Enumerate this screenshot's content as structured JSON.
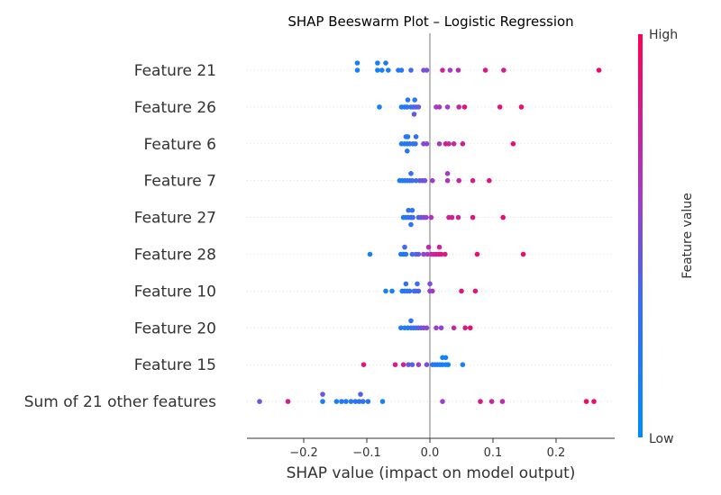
{
  "chart_data": {
    "type": "scatter",
    "title": "SHAP Beeswarm Plot – Logistic Regression",
    "xlabel": "SHAP value (impact on model output)",
    "xlim": [
      -0.29,
      0.295
    ],
    "xticks": [
      -0.2,
      -0.1,
      0.0,
      0.1,
      0.2
    ],
    "xtick_labels": [
      "−0.2",
      "−0.1",
      "0.0",
      "0.1",
      "0.2"
    ],
    "colorbar": {
      "label": "Feature value",
      "high": "High",
      "low": "Low",
      "low_color": "#008bfb",
      "high_color": "#ff0052"
    },
    "grid": false,
    "features": [
      {
        "name": "Feature 21",
        "points": [
          [
            -0.115,
            -0.53,
            0.15
          ],
          [
            -0.083,
            -0.53,
            0.15
          ],
          [
            -0.07,
            -0.53,
            0.2
          ],
          [
            -0.115,
            0,
            0.1
          ],
          [
            -0.083,
            0,
            0.1
          ],
          [
            -0.076,
            0,
            0.15
          ],
          [
            -0.066,
            0,
            0.15
          ],
          [
            -0.05,
            0,
            0.2
          ],
          [
            -0.045,
            0,
            0.2
          ],
          [
            -0.03,
            0,
            0.35
          ],
          [
            -0.01,
            0,
            0.5
          ],
          [
            -0.005,
            0,
            0.5
          ],
          [
            0.02,
            0,
            0.75
          ],
          [
            0.032,
            0,
            0.6
          ],
          [
            0.045,
            0,
            0.7
          ],
          [
            0.088,
            0,
            0.85
          ],
          [
            0.117,
            0,
            0.8
          ],
          [
            0.268,
            0,
            0.95
          ]
        ]
      },
      {
        "name": "Feature 26",
        "points": [
          [
            -0.035,
            -0.53,
            0.2
          ],
          [
            -0.024,
            -0.53,
            0.25
          ],
          [
            -0.08,
            0,
            0.1
          ],
          [
            -0.045,
            0,
            0.15
          ],
          [
            -0.04,
            0,
            0.2
          ],
          [
            -0.036,
            0,
            0.25
          ],
          [
            -0.03,
            0,
            0.3
          ],
          [
            -0.026,
            0,
            0.35
          ],
          [
            -0.022,
            0,
            0.4
          ],
          [
            -0.018,
            0,
            0.45
          ],
          [
            0.01,
            0,
            0.6
          ],
          [
            0.015,
            0,
            0.65
          ],
          [
            0.028,
            0,
            0.6
          ],
          [
            0.046,
            0,
            0.75
          ],
          [
            0.055,
            0,
            0.85
          ],
          [
            0.111,
            0,
            0.85
          ],
          [
            0.145,
            0,
            0.9
          ],
          [
            -0.025,
            0.53,
            0.45
          ]
        ]
      },
      {
        "name": "Feature 6",
        "points": [
          [
            -0.038,
            -0.53,
            0.2
          ],
          [
            -0.035,
            -0.53,
            0.2
          ],
          [
            -0.022,
            -0.53,
            0.3
          ],
          [
            -0.045,
            0,
            0.15
          ],
          [
            -0.04,
            0,
            0.2
          ],
          [
            -0.036,
            0,
            0.2
          ],
          [
            -0.032,
            0,
            0.25
          ],
          [
            -0.027,
            0,
            0.25
          ],
          [
            -0.023,
            0,
            0.3
          ],
          [
            -0.01,
            0,
            0.5
          ],
          [
            -0.005,
            0,
            0.55
          ],
          [
            0.015,
            0,
            0.6
          ],
          [
            0.025,
            0,
            0.8
          ],
          [
            0.03,
            0,
            0.75
          ],
          [
            0.038,
            0,
            0.7
          ],
          [
            0.052,
            0,
            0.8
          ],
          [
            0.132,
            0,
            0.9
          ],
          [
            -0.036,
            0.53,
            0.25
          ]
        ]
      },
      {
        "name": "Feature 7",
        "points": [
          [
            -0.03,
            -0.53,
            0.3
          ],
          [
            0.028,
            -0.53,
            0.6
          ],
          [
            -0.048,
            0,
            0.15
          ],
          [
            -0.044,
            0,
            0.15
          ],
          [
            -0.04,
            0,
            0.2
          ],
          [
            -0.036,
            0,
            0.25
          ],
          [
            -0.032,
            0,
            0.3
          ],
          [
            -0.028,
            0,
            0.35
          ],
          [
            -0.022,
            0,
            0.35
          ],
          [
            -0.016,
            0,
            0.45
          ],
          [
            -0.012,
            0,
            0.45
          ],
          [
            -0.008,
            0,
            0.5
          ],
          [
            0.004,
            0,
            0.6
          ],
          [
            0.028,
            0,
            0.65
          ],
          [
            0.046,
            0,
            0.75
          ],
          [
            0.068,
            0,
            0.8
          ],
          [
            0.094,
            0,
            0.85
          ]
        ]
      },
      {
        "name": "Feature 27",
        "points": [
          [
            -0.034,
            -0.53,
            0.3
          ],
          [
            -0.028,
            -0.53,
            0.3
          ],
          [
            -0.042,
            0,
            0.15
          ],
          [
            -0.038,
            0,
            0.2
          ],
          [
            -0.034,
            0,
            0.25
          ],
          [
            -0.03,
            0,
            0.3
          ],
          [
            -0.027,
            0,
            0.35
          ],
          [
            -0.018,
            0,
            0.4
          ],
          [
            -0.014,
            0,
            0.45
          ],
          [
            -0.01,
            0,
            0.5
          ],
          [
            -0.006,
            0,
            0.55
          ],
          [
            0.002,
            0,
            0.65
          ],
          [
            0.03,
            0,
            0.75
          ],
          [
            0.035,
            0,
            0.8
          ],
          [
            0.045,
            0,
            0.75
          ],
          [
            0.068,
            0,
            0.85
          ],
          [
            0.116,
            0,
            0.9
          ],
          [
            -0.03,
            0.53,
            0.3
          ]
        ]
      },
      {
        "name": "Feature 28",
        "points": [
          [
            -0.04,
            -0.53,
            0.35
          ],
          [
            -0.002,
            -0.53,
            0.7
          ],
          [
            0.015,
            -0.53,
            0.75
          ],
          [
            -0.095,
            0,
            0.2
          ],
          [
            -0.046,
            0,
            0.15
          ],
          [
            -0.042,
            0,
            0.2
          ],
          [
            -0.038,
            0,
            0.25
          ],
          [
            -0.028,
            0,
            0.35
          ],
          [
            -0.022,
            0,
            0.4
          ],
          [
            -0.018,
            0,
            0.45
          ],
          [
            -0.01,
            0,
            0.55
          ],
          [
            -0.004,
            0,
            0.6
          ],
          [
            0.002,
            0,
            0.7
          ],
          [
            0.006,
            0,
            0.75
          ],
          [
            0.01,
            0,
            0.8
          ],
          [
            0.014,
            0,
            0.8
          ],
          [
            0.018,
            0,
            0.85
          ],
          [
            0.024,
            0,
            0.85
          ],
          [
            0.075,
            0,
            0.9
          ],
          [
            0.148,
            0,
            0.9
          ]
        ]
      },
      {
        "name": "Feature 10",
        "points": [
          [
            -0.038,
            -0.53,
            0.3
          ],
          [
            -0.02,
            -0.53,
            0.35
          ],
          [
            0.0,
            -0.53,
            0.5
          ],
          [
            -0.07,
            0,
            0.15
          ],
          [
            -0.06,
            0,
            0.15
          ],
          [
            -0.044,
            0,
            0.2
          ],
          [
            -0.04,
            0,
            0.2
          ],
          [
            -0.036,
            0,
            0.25
          ],
          [
            -0.032,
            0,
            0.3
          ],
          [
            -0.025,
            0,
            0.3
          ],
          [
            -0.022,
            0,
            0.35
          ],
          [
            -0.018,
            0,
            0.4
          ],
          [
            0.0,
            0,
            0.55
          ],
          [
            0.004,
            0,
            0.6
          ],
          [
            0.05,
            0,
            0.85
          ],
          [
            0.072,
            0,
            0.85
          ]
        ]
      },
      {
        "name": "Feature 20",
        "points": [
          [
            -0.03,
            -0.53,
            0.3
          ],
          [
            -0.046,
            0,
            0.15
          ],
          [
            -0.04,
            0,
            0.2
          ],
          [
            -0.035,
            0,
            0.2
          ],
          [
            -0.03,
            0,
            0.25
          ],
          [
            -0.026,
            0,
            0.3
          ],
          [
            -0.022,
            0,
            0.35
          ],
          [
            -0.018,
            0,
            0.4
          ],
          [
            -0.014,
            0,
            0.45
          ],
          [
            -0.01,
            0,
            0.5
          ],
          [
            -0.005,
            0,
            0.55
          ],
          [
            0.01,
            0,
            0.6
          ],
          [
            0.018,
            0,
            0.55
          ],
          [
            0.038,
            0,
            0.7
          ],
          [
            0.056,
            0,
            0.8
          ],
          [
            0.064,
            0,
            0.9
          ]
        ]
      },
      {
        "name": "Feature 15",
        "points": [
          [
            0.02,
            -0.53,
            0.1
          ],
          [
            0.025,
            -0.53,
            0.1
          ],
          [
            -0.105,
            0,
            0.85
          ],
          [
            -0.055,
            0,
            0.8
          ],
          [
            -0.042,
            0,
            0.75
          ],
          [
            -0.034,
            0,
            0.45
          ],
          [
            -0.028,
            0,
            0.4
          ],
          [
            -0.018,
            0,
            0.6
          ],
          [
            -0.005,
            0,
            0.5
          ],
          [
            0.004,
            0,
            0.3
          ],
          [
            0.008,
            0,
            0.2
          ],
          [
            0.012,
            0,
            0.2
          ],
          [
            0.016,
            0,
            0.15
          ],
          [
            0.02,
            0,
            0.1
          ],
          [
            0.025,
            0,
            0.1
          ],
          [
            0.029,
            0,
            0.1
          ],
          [
            0.052,
            0,
            0.15
          ]
        ]
      },
      {
        "name": "Sum of 21 other features",
        "points": [
          [
            -0.17,
            -0.53,
            0.45
          ],
          [
            -0.11,
            -0.53,
            0.4
          ],
          [
            -0.27,
            0,
            0.45
          ],
          [
            -0.225,
            0,
            0.8
          ],
          [
            -0.17,
            0,
            0.15
          ],
          [
            -0.148,
            0,
            0.15
          ],
          [
            -0.14,
            0,
            0.2
          ],
          [
            -0.133,
            0,
            0.2
          ],
          [
            -0.125,
            0,
            0.25
          ],
          [
            -0.118,
            0,
            0.25
          ],
          [
            -0.112,
            0,
            0.3
          ],
          [
            -0.106,
            0,
            0.3
          ],
          [
            -0.098,
            0,
            0.2
          ],
          [
            -0.075,
            0,
            0.15
          ],
          [
            0.02,
            0,
            0.6
          ],
          [
            0.08,
            0,
            0.85
          ],
          [
            0.098,
            0,
            0.75
          ],
          [
            0.115,
            0,
            0.7
          ],
          [
            0.248,
            0,
            0.95
          ],
          [
            0.26,
            0,
            0.9
          ]
        ]
      }
    ]
  }
}
